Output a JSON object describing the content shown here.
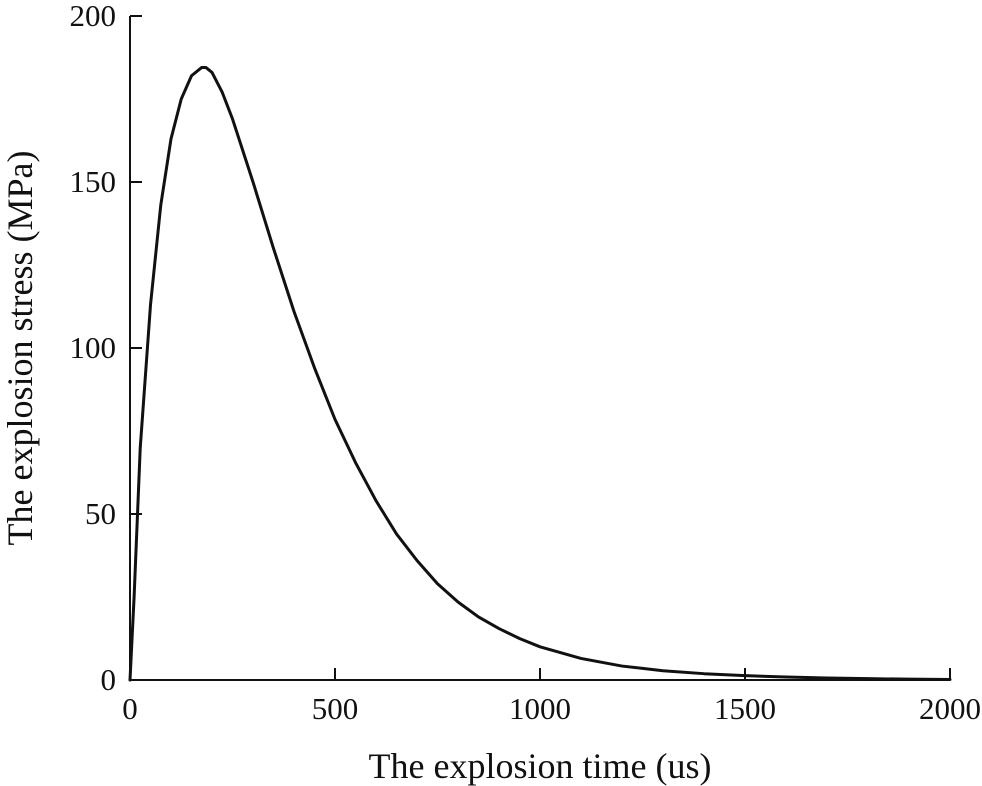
{
  "chart_data": {
    "type": "line",
    "title": "",
    "xlabel": "The explosion time (us)",
    "ylabel": "The explosion stress (MPa)",
    "xlim": [
      0,
      2000
    ],
    "ylim": [
      0,
      200
    ],
    "x_ticks": [
      0,
      500,
      1000,
      1500,
      2000
    ],
    "y_ticks": [
      0,
      50,
      100,
      150,
      200
    ],
    "x_tick_labels": [
      "0",
      "500",
      "1000",
      "1500",
      "2000"
    ],
    "y_tick_labels": [
      "0",
      "50",
      "100",
      "150",
      "200"
    ],
    "grid": false,
    "legend": "none",
    "line_color": "#111111",
    "series": [
      {
        "x": [
          0,
          10,
          25,
          50,
          75,
          100,
          125,
          150,
          175,
          185,
          200,
          225,
          250,
          300,
          350,
          400,
          450,
          500,
          550,
          600,
          650,
          700,
          750,
          800,
          850,
          900,
          950,
          1000,
          1100,
          1200,
          1300,
          1400,
          1500,
          1600,
          1700,
          1800,
          1900,
          2000
        ],
        "values": [
          0,
          25,
          70,
          113,
          143,
          163,
          175,
          182,
          184.5,
          184.5,
          183,
          177,
          169,
          150,
          130,
          111,
          94,
          78.5,
          65.5,
          54,
          44,
          36,
          29,
          23.5,
          19,
          15.5,
          12.5,
          10,
          6.5,
          4.2,
          2.8,
          1.9,
          1.3,
          0.9,
          0.6,
          0.4,
          0.25,
          0.15
        ]
      }
    ]
  }
}
